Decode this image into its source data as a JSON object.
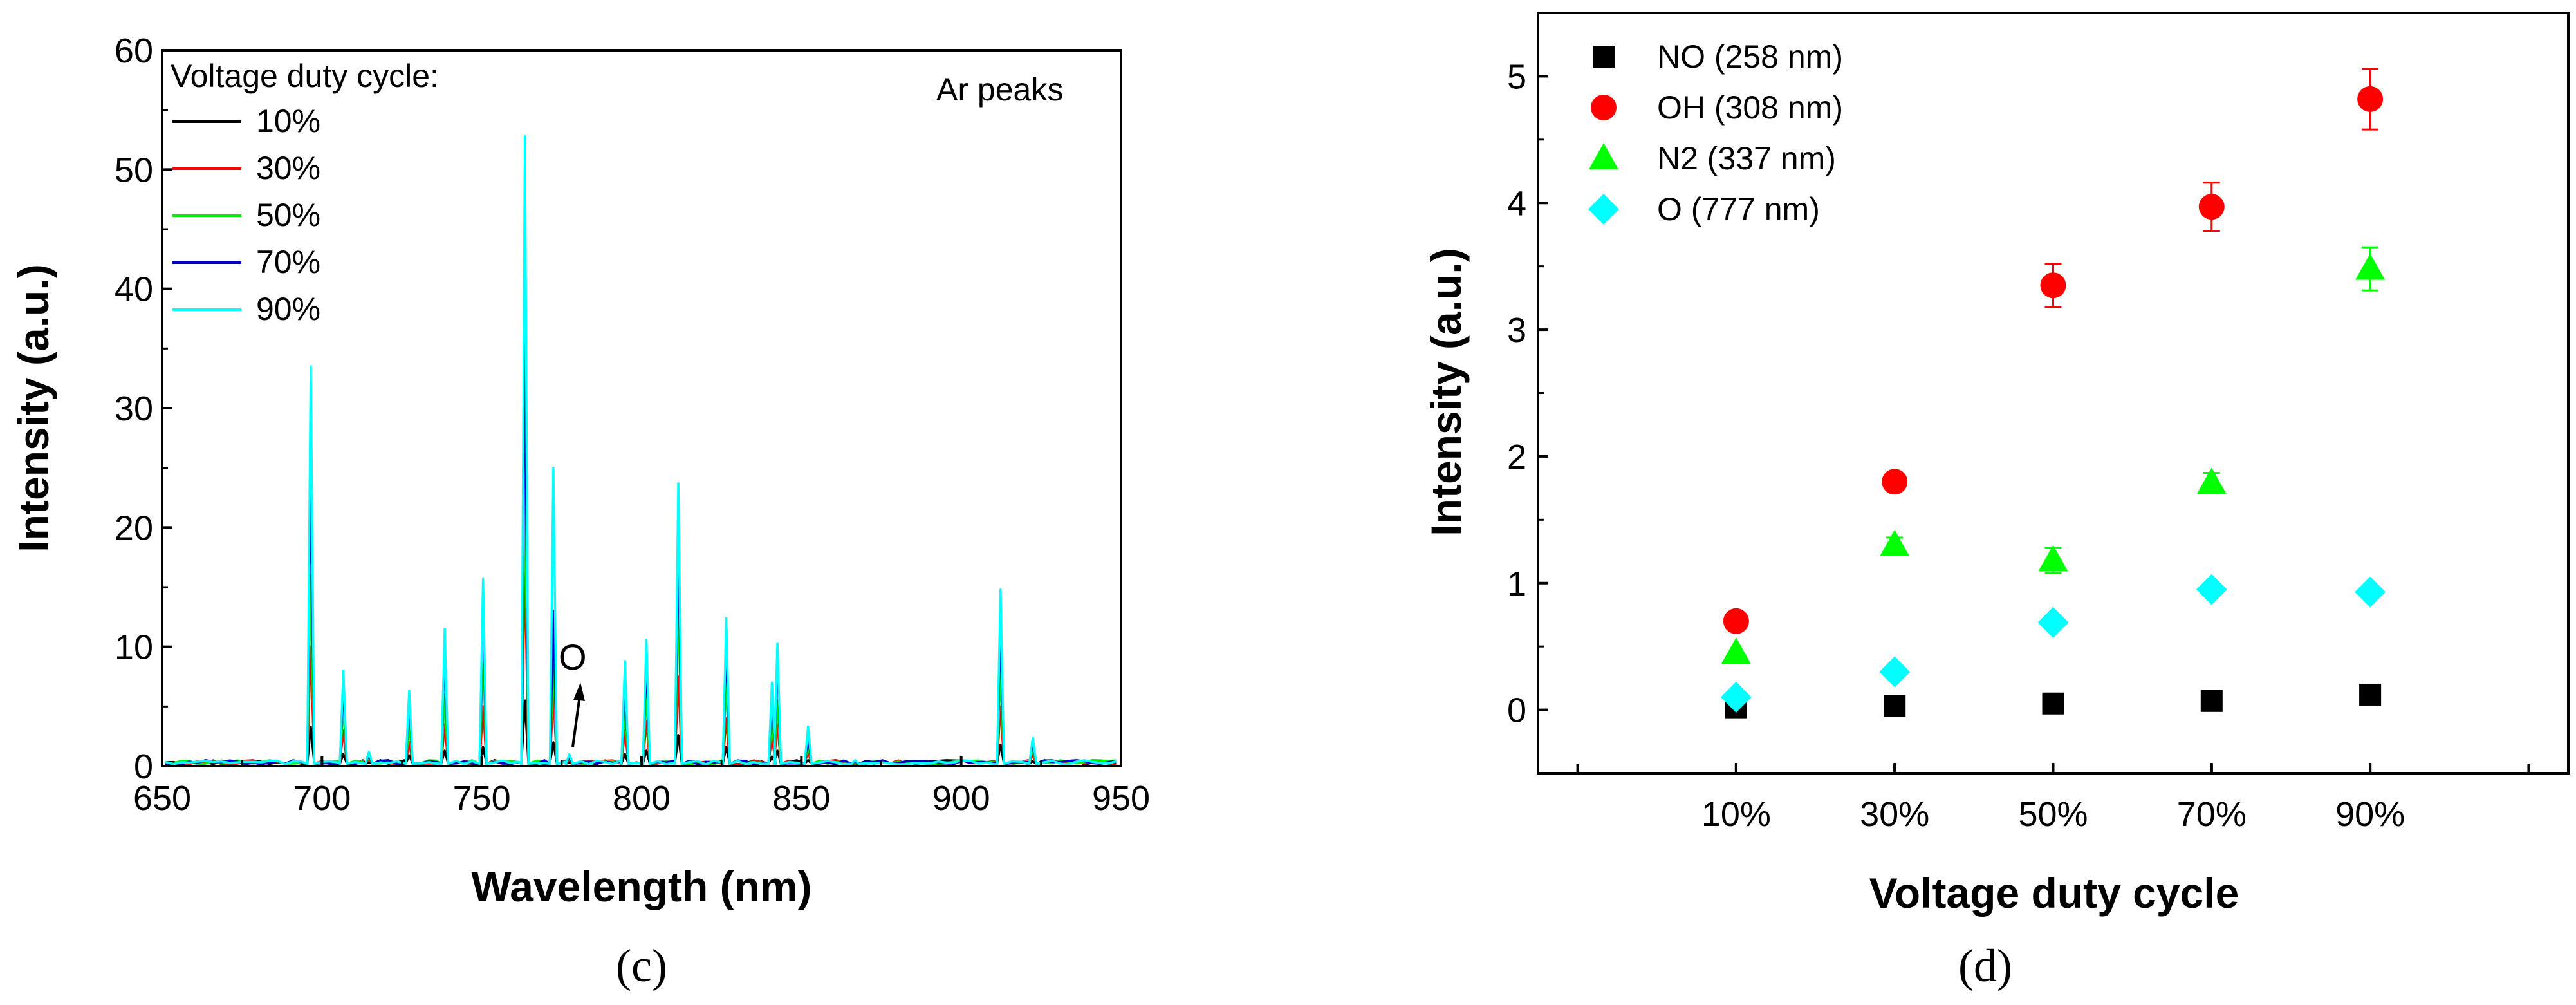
{
  "chart_data": [
    {
      "type": "line",
      "panel_label": "(c)",
      "xlabel": "Wavelength (nm)",
      "ylabel": "Intensity (a.u.)",
      "xlim": [
        650,
        950
      ],
      "ylim": [
        0,
        60
      ],
      "x_ticks": [
        650,
        700,
        750,
        800,
        850,
        900,
        950
      ],
      "y_ticks": [
        0,
        10,
        20,
        30,
        40,
        50,
        60
      ],
      "legend_title": "Voltage duty cycle:",
      "legend_position": "top-left",
      "annotations": {
        "corner_text": "Ar peaks",
        "arrow_label": "O",
        "arrow_target_wavelength": 777
      },
      "peaks_nm": [
        696.5,
        706.7,
        714.7,
        727.3,
        738.4,
        750.4,
        763.5,
        772.4,
        777.4,
        794.8,
        801.5,
        811.5,
        826.5,
        840.8,
        842.5,
        852.1,
        866.8,
        912.3,
        922.4
      ],
      "series": [
        {
          "name": "10%",
          "color": "#000000",
          "peak_heights": [
            3.3,
            1.0,
            0.3,
            0.9,
            1.3,
            1.6,
            5.5,
            2.0,
            0.3,
            1.0,
            1.3,
            2.6,
            1.6,
            0.8,
            1.3,
            0.5,
            0.1,
            1.8,
            0.4
          ]
        },
        {
          "name": "30%",
          "color": "#ff0000",
          "peak_heights": [
            10.0,
            3.0,
            0.6,
            2.0,
            3.5,
            5.0,
            17.0,
            6.0,
            0.5,
            3.0,
            3.8,
            7.5,
            4.0,
            2.5,
            3.5,
            1.2,
            0.2,
            5.0,
            1.0
          ]
        },
        {
          "name": "50%",
          "color": "#00ee00",
          "peak_heights": [
            16.0,
            5.0,
            0.8,
            3.5,
            6.0,
            9.5,
            24.0,
            9.0,
            0.7,
            5.0,
            6.0,
            14.0,
            7.0,
            4.0,
            5.5,
            1.8,
            0.3,
            8.0,
            1.5
          ]
        },
        {
          "name": "70%",
          "color": "#0000cc",
          "peak_heights": [
            25.5,
            7.0,
            1.0,
            5.5,
            10.0,
            13.5,
            37.0,
            13.0,
            0.8,
            7.5,
            9.0,
            19.0,
            10.5,
            6.0,
            9.0,
            2.5,
            0.4,
            12.0,
            2.0
          ]
        },
        {
          "name": "90%",
          "color": "#00ffff",
          "peak_heights": [
            33.5,
            8.0,
            1.2,
            6.3,
            11.5,
            15.7,
            52.8,
            25.0,
            1.0,
            8.8,
            10.6,
            23.7,
            12.4,
            7.0,
            10.3,
            3.3,
            0.5,
            14.8,
            2.4
          ]
        }
      ]
    },
    {
      "type": "scatter",
      "panel_label": "(d)",
      "xlabel": "Voltage duty cycle",
      "ylabel": "Intensity (a.u.)",
      "categories": [
        "10%",
        "30%",
        "50%",
        "70%",
        "90%"
      ],
      "ylim": [
        -0.5,
        5.5
      ],
      "y_ticks": [
        0,
        1,
        2,
        3,
        4,
        5
      ],
      "legend_position": "top-left",
      "series": [
        {
          "name": "NO (258 nm)",
          "marker": "square",
          "color": "#000000",
          "values": [
            0.02,
            0.03,
            0.05,
            0.07,
            0.12
          ],
          "errors": [
            0.01,
            0.01,
            0.01,
            0.01,
            0.02
          ]
        },
        {
          "name": "OH (308 nm)",
          "marker": "circle",
          "color": "#ff0000",
          "values": [
            0.7,
            1.8,
            3.35,
            3.97,
            4.82
          ],
          "errors": [
            0.04,
            0.07,
            0.17,
            0.19,
            0.24
          ]
        },
        {
          "name": "N2 (337 nm)",
          "marker": "triangle",
          "color": "#00ff00",
          "values": [
            0.45,
            1.3,
            1.18,
            1.79,
            3.48
          ],
          "errors": [
            0.03,
            0.06,
            0.1,
            0.08,
            0.17
          ]
        },
        {
          "name": "O (777 nm)",
          "marker": "diamond",
          "color": "#00ffff",
          "values": [
            0.1,
            0.3,
            0.69,
            0.95,
            0.93
          ],
          "errors": [
            0.02,
            0.02,
            0.03,
            0.03,
            0.03
          ]
        }
      ]
    }
  ]
}
